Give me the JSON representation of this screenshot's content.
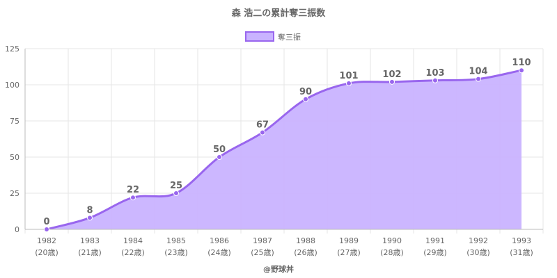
{
  "chart_data": {
    "type": "area",
    "title": "森 浩二の累計奪三振数",
    "legend": {
      "label": "奪三振",
      "placement": "top-center"
    },
    "categories": [
      "1982",
      "1983",
      "1984",
      "1985",
      "1986",
      "1987",
      "1988",
      "1989",
      "1990",
      "1991",
      "1992",
      "1993"
    ],
    "ages": [
      "(20歳)",
      "(21歳)",
      "(22歳)",
      "(23歳)",
      "(24歳)",
      "(25歳)",
      "(26歳)",
      "(27歳)",
      "(28歳)",
      "(29歳)",
      "(30歳)",
      "(31歳)"
    ],
    "series": [
      {
        "name": "奪三振",
        "values": [
          0,
          8,
          22,
          25,
          50,
          67,
          90,
          101,
          102,
          103,
          104,
          110
        ]
      }
    ],
    "ylim": [
      0,
      125
    ],
    "yticks": [
      0,
      25,
      50,
      75,
      100,
      125
    ],
    "grid": true,
    "colors": {
      "line": "#9966ee",
      "fill": "#c9b3ff",
      "grid": "#e6e6e6",
      "axis": "#bbbbbb",
      "text": "#666666"
    },
    "credit": "@野球丼"
  }
}
